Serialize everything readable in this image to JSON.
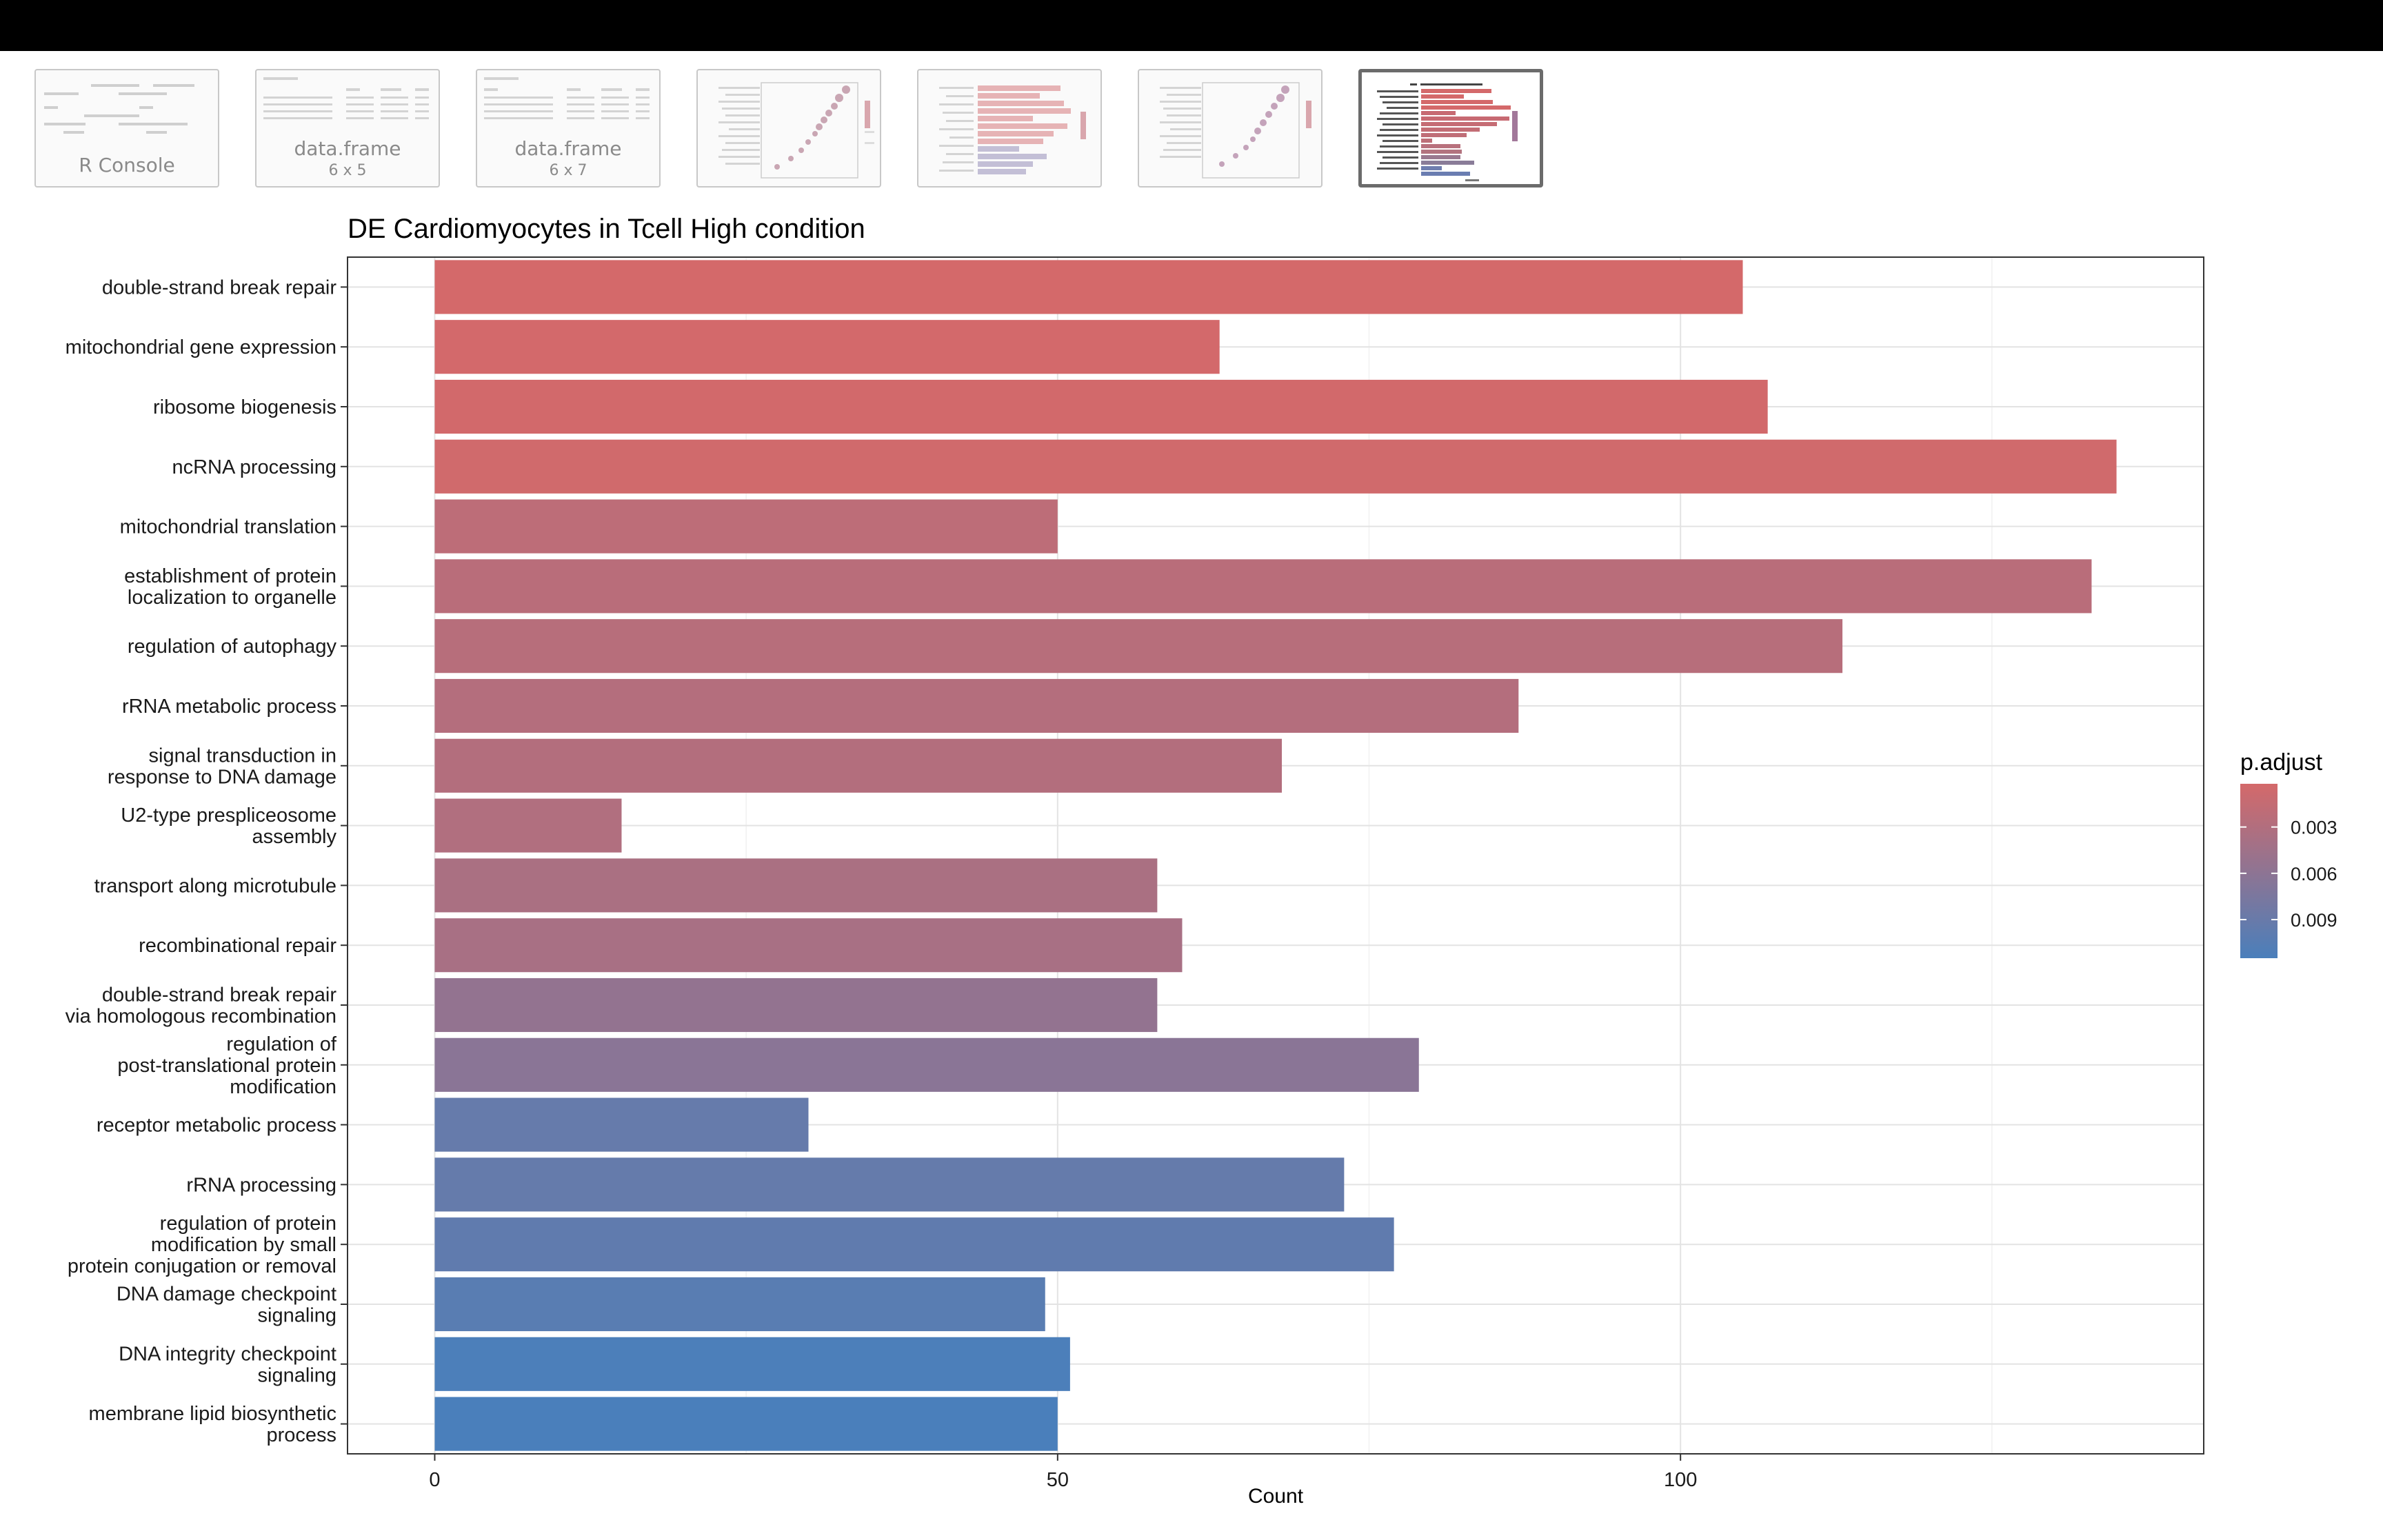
{
  "thumbnails": [
    {
      "title": "R Console",
      "subtitle": "",
      "kind": "console",
      "selected": false
    },
    {
      "title": "data.frame",
      "subtitle": "6 x 5",
      "kind": "table",
      "selected": false
    },
    {
      "title": "data.frame",
      "subtitle": "6 x 7",
      "kind": "table",
      "selected": false
    },
    {
      "title": "",
      "subtitle": "",
      "kind": "dotplot",
      "selected": false
    },
    {
      "title": "",
      "subtitle": "",
      "kind": "barplot",
      "selected": false
    },
    {
      "title": "",
      "subtitle": "",
      "kind": "dotplot",
      "selected": false
    },
    {
      "title": "",
      "subtitle": "",
      "kind": "barplot",
      "selected": true
    }
  ],
  "chart_data": {
    "type": "bar",
    "orientation": "horizontal",
    "title": "DE Cardiomyocytes in Tcell High condition",
    "xlabel": "Count",
    "ylabel": "",
    "xlim": [
      -7,
      142
    ],
    "xticks": [
      0,
      50,
      100
    ],
    "grid": true,
    "legend": {
      "title": "p.adjust",
      "placement": "right",
      "ticks": [
        "0.003",
        "0.006",
        "0.009"
      ],
      "tick_values": [
        0.003,
        0.006,
        0.009
      ],
      "range": [
        0.0002,
        0.0115
      ],
      "low_color": "#d4696a",
      "high_color": "#4a7fbb"
    },
    "categories": [
      "double-strand break repair",
      "mitochondrial gene expression",
      "ribosome biogenesis",
      "ncRNA processing",
      "mitochondrial translation",
      "establishment of protein\nlocalization to organelle",
      "regulation of autophagy",
      "rRNA metabolic process",
      "signal transduction in\nresponse to DNA damage",
      "U2-type prespliceosome\nassembly",
      "transport along microtubule",
      "recombinational repair",
      "double-strand break repair\nvia homologous recombination",
      "regulation of\npost-translational protein\nmodification",
      "receptor metabolic process",
      "rRNA processing",
      "regulation of protein\nmodification by small\nprotein conjugation or removal",
      "DNA damage checkpoint\nsignaling",
      "DNA integrity checkpoint\nsignaling",
      "membrane lipid biosynthetic\nprocess"
    ],
    "values": [
      105,
      63,
      107,
      135,
      50,
      133,
      113,
      87,
      68,
      15,
      58,
      60,
      58,
      79,
      30,
      73,
      77,
      49,
      51,
      50
    ],
    "p_adjust": [
      0.0002,
      0.0003,
      0.0004,
      0.0005,
      0.0021,
      0.0024,
      0.0026,
      0.0028,
      0.0029,
      0.0031,
      0.0036,
      0.0038,
      0.0055,
      0.0063,
      0.0092,
      0.0093,
      0.0097,
      0.0103,
      0.0113,
      0.0115
    ]
  }
}
